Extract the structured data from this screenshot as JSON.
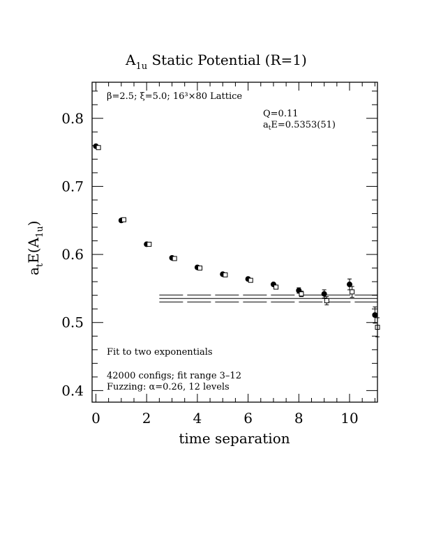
{
  "chart_data": {
    "type": "scatter",
    "title_main": "A",
    "title_sub": "1u",
    "title_rest": " Static Potential (R=1)",
    "xlabel": "time separation",
    "ylabel_main": "a",
    "ylabel_sub1": "t",
    "ylabel_mid": "E(A",
    "ylabel_sub2": "1u",
    "ylabel_end": ")",
    "xlim": [
      -0.15,
      11.1
    ],
    "ylim": [
      0.383,
      0.853
    ],
    "x_ticks": [
      0,
      2,
      4,
      6,
      8,
      10
    ],
    "y_ticks": [
      0.4,
      0.5,
      0.6,
      0.7,
      0.8
    ],
    "x_tick_labels": [
      "0",
      "2",
      "4",
      "6",
      "8",
      "10"
    ],
    "y_tick_labels": [
      "0.4",
      "0.5",
      "0.6",
      "0.7",
      "0.8"
    ],
    "x_minor_step": 0.5,
    "y_minor_step": 0.02,
    "annotations": {
      "lattice": "β=2.5; ξ=5.0; 16³×80 Lattice",
      "q": "Q=0.11",
      "energy_main": "a",
      "energy_sub": "t",
      "energy_rest": "E=0.5353(51)",
      "fit": "Fit to two exponentials",
      "configs": "42000 configs; fit range 3–12",
      "fuzzing": "Fuzzing: α=0.26, 12 levels"
    },
    "series": [
      {
        "marker": "filled-circle",
        "x": [
          0,
          1,
          2,
          3,
          4,
          5,
          6,
          7,
          8,
          9,
          10,
          11
        ],
        "y": [
          0.759,
          0.65,
          0.615,
          0.595,
          0.581,
          0.571,
          0.564,
          0.556,
          0.547,
          0.542,
          0.556,
          0.511
        ],
        "err": [
          0.001,
          0.002,
          0.002,
          0.002,
          0.002,
          0.002,
          0.003,
          0.003,
          0.004,
          0.006,
          0.008,
          0.012
        ]
      },
      {
        "marker": "open-square",
        "x": [
          0.1,
          1.1,
          2.1,
          3.1,
          4.1,
          5.1,
          6.1,
          7.1,
          8.1,
          9.1,
          10.1,
          11.1
        ],
        "y": [
          0.757,
          0.651,
          0.615,
          0.594,
          0.58,
          0.57,
          0.562,
          0.552,
          0.542,
          0.532,
          0.545,
          0.493
        ],
        "err": [
          0.001,
          0.002,
          0.002,
          0.002,
          0.002,
          0.002,
          0.003,
          0.003,
          0.004,
          0.006,
          0.008,
          0.014
        ]
      }
    ],
    "fit": {
      "x_range": [
        2.5,
        11.1
      ],
      "central": 0.5353,
      "error": 0.0051
    }
  }
}
